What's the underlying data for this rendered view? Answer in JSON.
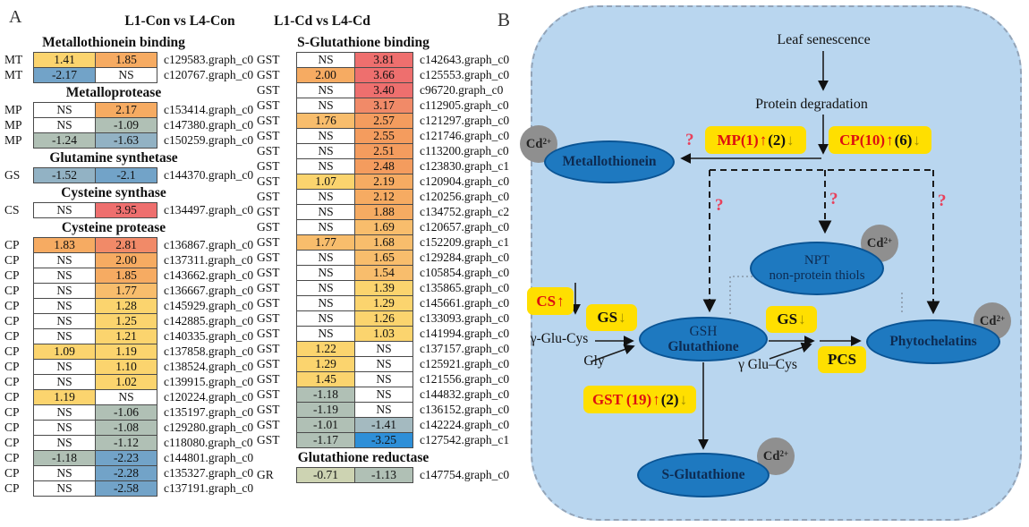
{
  "panel_a": {
    "label": "A",
    "col_headers": [
      "L1-Con vs L4-Con",
      "L1-Cd vs L4-Cd"
    ],
    "left_sections": [
      {
        "title": "Metallothionein binding",
        "rows": [
          [
            "MT",
            "1.41",
            "1.85",
            "c129583.graph_c0"
          ],
          [
            "MT",
            "-2.17",
            "NS",
            "c120767.graph_c0"
          ]
        ]
      },
      {
        "title": "Metalloprotease",
        "rows": [
          [
            "MP",
            "NS",
            "2.17",
            "c153414.graph_c0"
          ],
          [
            "MP",
            "NS",
            "-1.09",
            "c147380.graph_c0"
          ],
          [
            "MP",
            "-1.24",
            "-1.63",
            "c150259.graph_c0"
          ]
        ]
      },
      {
        "title": "Glutamine synthetase",
        "rows": [
          [
            "GS",
            "-1.52",
            "-2.1",
            "c144370.graph_c0"
          ]
        ]
      },
      {
        "title": "Cysteine synthase",
        "rows": [
          [
            "CS",
            "NS",
            "3.95",
            "c134497.graph_c0"
          ]
        ]
      },
      {
        "title": "Cysteine protease",
        "rows": [
          [
            "CP",
            "1.83",
            "2.81",
            "c136867.graph_c0"
          ],
          [
            "CP",
            "NS",
            "2.00",
            "c137311.graph_c0"
          ],
          [
            "CP",
            "NS",
            "1.85",
            "c143662.graph_c0"
          ],
          [
            "CP",
            "NS",
            "1.77",
            "c136667.graph_c0"
          ],
          [
            "CP",
            "NS",
            "1.28",
            "c145929.graph_c0"
          ],
          [
            "CP",
            "NS",
            "1.25",
            "c142885.graph_c0"
          ],
          [
            "CP",
            "NS",
            "1.21",
            "c140335.graph_c0"
          ],
          [
            "CP",
            "1.09",
            "1.19",
            "c137858.graph_c0"
          ],
          [
            "CP",
            "NS",
            "1.10",
            "c138524.graph_c0"
          ],
          [
            "CP",
            "NS",
            "1.02",
            "c139915.graph_c0"
          ],
          [
            "CP",
            "1.19",
            "NS",
            "c120224.graph_c0"
          ],
          [
            "CP",
            "NS",
            "-1.06",
            "c135197.graph_c0"
          ],
          [
            "CP",
            "NS",
            "-1.08",
            "c129280.graph_c0"
          ],
          [
            "CP",
            "NS",
            "-1.12",
            "c118080.graph_c0"
          ],
          [
            "CP",
            "-1.18",
            "-2.23",
            "c144801.graph_c0"
          ],
          [
            "CP",
            "NS",
            "-2.28",
            "c135327.graph_c0"
          ],
          [
            "CP",
            "NS",
            "-2.58",
            "c137191.graph_c0"
          ]
        ]
      }
    ],
    "right_sections": [
      {
        "title": "S-Glutathione binding",
        "rows": [
          [
            "GST",
            "NS",
            "3.81",
            "c142643.graph_c0"
          ],
          [
            "GST",
            "2.00",
            "3.66",
            "c125553.graph_c0"
          ],
          [
            "GST",
            "NS",
            "3.40",
            "c96720.graph_c0"
          ],
          [
            "GST",
            "NS",
            "3.17",
            "c112905.graph_c0"
          ],
          [
            "GST",
            "1.76",
            "2.57",
            "c121297.graph_c0"
          ],
          [
            "GST",
            "NS",
            "2.55",
            "c121746.graph_c0"
          ],
          [
            "GST",
            "NS",
            "2.51",
            "c113200.graph_c0"
          ],
          [
            "GST",
            "NS",
            "2.48",
            "c123830.graph_c1"
          ],
          [
            "GST",
            "1.07",
            "2.19",
            "c120904.graph_c0"
          ],
          [
            "GST",
            "NS",
            "2.12",
            "c120256.graph_c0"
          ],
          [
            "GST",
            "NS",
            "1.88",
            "c134752.graph_c2"
          ],
          [
            "GST",
            "NS",
            "1.69",
            "c120657.graph_c0"
          ],
          [
            "GST",
            "1.77",
            "1.68",
            "c152209.graph_c1"
          ],
          [
            "GST",
            "NS",
            "1.65",
            "c129284.graph_c0"
          ],
          [
            "GST",
            "NS",
            "1.54",
            "c105854.graph_c0"
          ],
          [
            "GST",
            "NS",
            "1.39",
            "c135865.graph_c0"
          ],
          [
            "GST",
            "NS",
            "1.29",
            "c145661.graph_c0"
          ],
          [
            "GST",
            "NS",
            "1.26",
            "c133093.graph_c0"
          ],
          [
            "GST",
            "NS",
            "1.03",
            "c141994.graph_c0"
          ],
          [
            "GST",
            "1.22",
            "NS",
            "c137157.graph_c0"
          ],
          [
            "GST",
            "1.29",
            "NS",
            "c125921.graph_c0"
          ],
          [
            "GST",
            "1.45",
            "NS",
            "c121556.graph_c0"
          ],
          [
            "GST",
            "-1.18",
            "NS",
            "c144832.graph_c0"
          ],
          [
            "GST",
            "-1.19",
            "NS",
            "c136152.graph_c0"
          ],
          [
            "GST",
            "-1.01",
            "-1.41",
            "c142224.graph_c0"
          ],
          [
            "GST",
            "-1.17",
            "-3.25",
            "c127542.graph_c1"
          ]
        ]
      },
      {
        "title": "Glutathione reductase",
        "rows": [
          [
            "GR",
            "-0.71",
            "-1.13",
            "c147754.graph_c0"
          ]
        ]
      }
    ]
  },
  "panel_b": {
    "label": "B",
    "texts": {
      "leaf": "Leaf senescence",
      "protein": "Protein degradation",
      "glu_cys_left": "γ-Glu-Cys",
      "gly": "Gly",
      "glu_cys_right": "γ Glu–Cys"
    },
    "nodes": {
      "metallothionein": {
        "lines": [
          "Metallothionein"
        ]
      },
      "npt": {
        "lines": [
          "NPT",
          "non-protein thiols"
        ]
      },
      "gsh": {
        "lines": [
          "GSH",
          "Glutathione"
        ]
      },
      "phytochelatins": {
        "lines": [
          "Phytochelatins"
        ]
      },
      "s_glutathione": {
        "lines": [
          "S-Glutathione"
        ]
      }
    },
    "cd_label": {
      "base": "Cd",
      "sup": "2+"
    },
    "question_mark": "?",
    "enzyme_boxes": {
      "mp": [
        {
          "t": "MP(1)",
          "c": "#dd1010"
        },
        {
          "t": "↑",
          "c": "#dd1010"
        },
        {
          "t": "(2)",
          "c": "#111111"
        },
        {
          "t": "↓",
          "c": "#a08c00"
        }
      ],
      "cp": [
        {
          "t": "CP(10)",
          "c": "#dd1010"
        },
        {
          "t": "↑",
          "c": "#dd1010"
        },
        {
          "t": "(6)",
          "c": "#111111"
        },
        {
          "t": "↓",
          "c": "#a08c00"
        }
      ],
      "cs": [
        {
          "t": "CS",
          "c": "#dd1010"
        },
        {
          "t": "↑",
          "c": "#dd1010"
        }
      ],
      "gs_left": [
        {
          "t": "GS",
          "c": "#111111"
        },
        {
          "t": "↓",
          "c": "#a08c00"
        }
      ],
      "gs_right": [
        {
          "t": "GS",
          "c": "#111111"
        },
        {
          "t": "↓",
          "c": "#a08c00"
        }
      ],
      "pcs": [
        {
          "t": "PCS",
          "c": "#111111"
        }
      ],
      "gst": [
        {
          "t": "GST (19)",
          "c": "#dd1010"
        },
        {
          "t": "↑",
          "c": "#dd1010"
        },
        {
          "t": "(2)",
          "c": "#111111"
        },
        {
          "t": "↓",
          "c": "#a08c00"
        }
      ]
    }
  },
  "colors": {
    "panel_b_bg": "#b9d6ef",
    "node_fill": "#1e79c0",
    "node_border": "#0a5494",
    "node_text": "#0d2b52",
    "cd_fill": "#8f8f8f",
    "box_bg": "#ffdf00",
    "enzyme_red": "#dd1010",
    "down_arrow_olive": "#a08c00",
    "question_red": "#e8415c",
    "heat": {
      "ns": "#ffffff",
      "p1": "#fbd46e",
      "p2": "#f8bd6c",
      "p3": "#f6ab62",
      "p4": "#f49c5e",
      "p5": "#f18a68",
      "p6": "#ee6f6e",
      "n1": "#cdd3b2",
      "n2": "#b0c0b5",
      "n3": "#a4bac0",
      "n4": "#92b2c4",
      "n5": "#72a3c8",
      "n6": "#2e8fd8"
    }
  }
}
